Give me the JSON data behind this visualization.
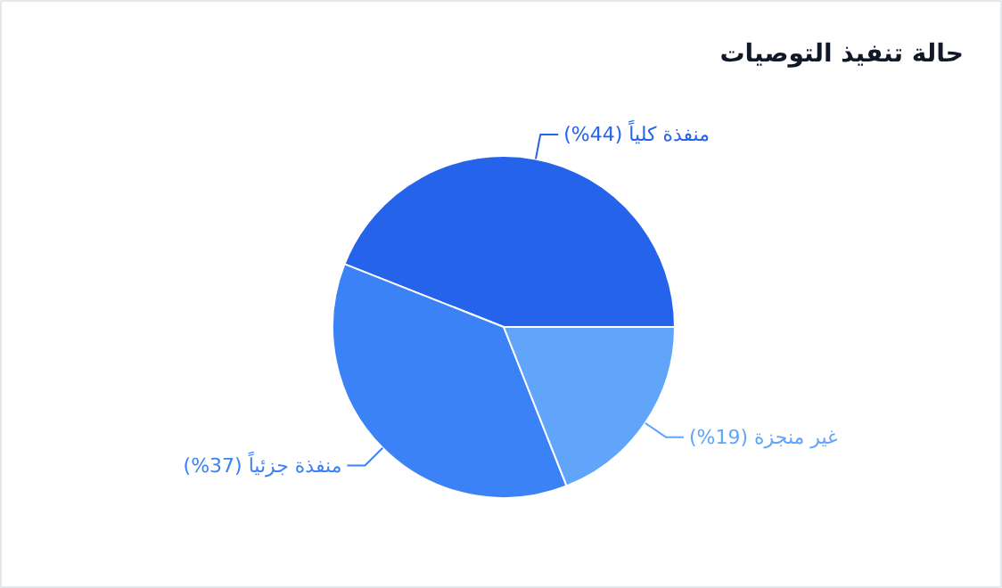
{
  "chart_data": {
    "type": "pie",
    "title": "حالة تنفيذ التوصيات",
    "categories": [
      "منفذة كلياً",
      "منفذة جزئياً",
      "غير منجزة"
    ],
    "values": [
      44,
      37,
      19
    ],
    "value_labels": [
      "(44%)",
      "(37%)",
      "(19%)"
    ],
    "colors": [
      "#2563eb",
      "#3b82f6",
      "#60a5fa"
    ]
  }
}
